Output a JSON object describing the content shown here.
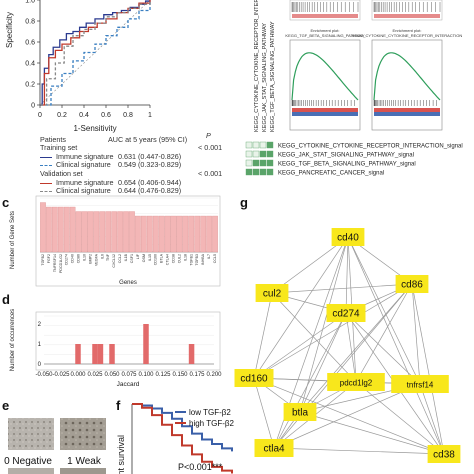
{
  "panel_labels": {
    "c": "c",
    "d": "d",
    "e": "e",
    "f": "f",
    "g": "g"
  },
  "roc": {
    "chart_data": {
      "type": "line",
      "ylabel": "Specificity",
      "xlabel": "1-Sensitivity",
      "xticks": [
        "0",
        "0.2",
        "0.4",
        "0.6",
        "0.8",
        "1"
      ],
      "yticks": [
        "0",
        "0.2",
        "0.4",
        "0.6",
        "0.8",
        "1.0"
      ],
      "xlim": [
        0,
        1
      ],
      "ylim": [
        0,
        1
      ],
      "series": [
        {
          "color": "#2b3a8f",
          "dash": "",
          "x": [
            0,
            0.02,
            0.04,
            0.08,
            0.12,
            0.18,
            0.24,
            0.3,
            0.36,
            0.42,
            0.5,
            0.58,
            0.66,
            0.74,
            0.82,
            0.9,
            0.96,
            1
          ],
          "y": [
            0,
            0.2,
            0.35,
            0.48,
            0.55,
            0.62,
            0.68,
            0.7,
            0.74,
            0.78,
            0.82,
            0.86,
            0.88,
            0.9,
            0.93,
            0.96,
            0.99,
            1
          ]
        },
        {
          "color": "#c0392b",
          "dash": "",
          "x": [
            0,
            0.04,
            0.08,
            0.14,
            0.2,
            0.28,
            0.36,
            0.44,
            0.52,
            0.6,
            0.7,
            0.8,
            0.9,
            1
          ],
          "y": [
            0,
            0.3,
            0.45,
            0.52,
            0.58,
            0.64,
            0.7,
            0.74,
            0.78,
            0.82,
            0.88,
            0.92,
            0.97,
            1
          ]
        },
        {
          "color": "#3a7fc1",
          "dash": "3,2",
          "x": [
            0,
            0.1,
            0.2,
            0.3,
            0.4,
            0.5,
            0.6,
            0.7,
            0.8,
            0.9,
            1
          ],
          "y": [
            0,
            0.18,
            0.3,
            0.42,
            0.5,
            0.58,
            0.66,
            0.74,
            0.82,
            0.9,
            1
          ]
        },
        {
          "color": "#888888",
          "dash": "3,2",
          "x": [
            0,
            0.06,
            0.14,
            0.22,
            0.3,
            0.4,
            0.5,
            0.6,
            0.7,
            0.8,
            0.9,
            1
          ],
          "y": [
            0,
            0.25,
            0.4,
            0.56,
            0.66,
            0.72,
            0.78,
            0.84,
            0.88,
            0.92,
            0.96,
            1
          ]
        }
      ]
    }
  },
  "auc_table": {
    "col_patients": "Patients",
    "col_auc": "AUC at 5 years (95% CI)",
    "col_p": "P",
    "training": "Training set",
    "validation": "Validation set",
    "training_p": "< 0.001",
    "validation_p": "< 0.001",
    "rows_training": [
      {
        "name": "Immune signature",
        "auc": "0.631 (0.447-0.826)"
      },
      {
        "name": "Clinical signature",
        "auc": "0.549 (0.323-0.829)"
      }
    ],
    "rows_validation": [
      {
        "name": "Immune signature",
        "auc": "0.654 (0.406-0.944)"
      },
      {
        "name": "Clinical signature",
        "auc": "0.644 (0.476-0.829)"
      }
    ]
  },
  "gsea": {
    "labels": [
      "KEGG_CYTOKINE_CYTOKINE_RECEPTOR_INTERACTION",
      "KEGG_JAK_STAT_SIGNALING_PATHWAY",
      "KEGG_TGF_BETA_SIGNALING_PATHWAY"
    ],
    "plots": [
      {
        "title": "Enrichment plot:\nKEGG_TGF_BETA_SIGNALING_PATHWAY"
      },
      {
        "title": "Enrichment plot:\nKEGG_CYTOKINE_CYTOKINE_RECEPTOR_INTERACTION"
      }
    ],
    "legend_items": [
      "KEGG_CYTOKINE_CYTOKINE_RECEPTOR_INTERACTION_signal",
      "KEGG_JAK_STAT_SIGNALING_PATHWAY_signal",
      "KEGG_TGF_BETA_SIGNALING_PATHWAY_signal",
      "KEGG_PANCREATIC_CANCER_signal"
    ],
    "colors": {
      "curve": "#2e9e5b",
      "box": "#5aa469"
    }
  },
  "gene_sets": {
    "chart_data": {
      "type": "bar",
      "ylabel": "Number of Gene Sets",
      "xlabel": "Genes",
      "ylim": [
        0,
        12
      ],
      "categories": [
        "TGFB2",
        "FGF2",
        "TNFRSF14",
        "PDCD1LG2",
        "CD274",
        "CD40",
        "CD86",
        "IL10",
        "BMP2",
        "VEGFA",
        "IL6",
        "TNF",
        "CXCL12",
        "CCL2",
        "IL1B",
        "CSF1",
        "LIF",
        "OSM",
        "IL15",
        "CD160",
        "BTLA",
        "CTLA4",
        "CD38",
        "CUL2",
        "IL18",
        "TGFB1",
        "TGFB3",
        "INHBA",
        "IL7",
        "CCL5"
      ],
      "values": [
        11,
        10,
        10,
        10,
        10,
        10,
        9,
        9,
        9,
        9,
        9,
        9,
        9,
        9,
        9,
        9,
        8,
        8,
        8,
        8,
        8,
        8,
        8,
        8,
        8,
        8,
        8,
        8,
        8,
        8
      ]
    },
    "colors": {
      "bar": "#f3b6b6",
      "edge": "#d98c8c"
    }
  },
  "jaccard": {
    "chart_data": {
      "type": "bar",
      "ylabel": "Number of occurrences",
      "xlabel": "Jaccard",
      "xlim": [
        -0.05,
        0.2
      ],
      "ylim": [
        0,
        2.4
      ],
      "xticks": [
        "-0.050",
        "-0.025",
        "0.000",
        "0.025",
        "0.050",
        "0.075",
        "0.100",
        "0.125",
        "0.150",
        "0.175",
        "0.200"
      ],
      "yticks": [
        "0",
        "1",
        "2"
      ],
      "x": [
        0.0,
        0.025,
        0.033,
        0.05,
        0.1,
        0.167
      ],
      "values": [
        1,
        1,
        1,
        1,
        2,
        1
      ]
    },
    "colors": {
      "bar": "#e26a6a"
    }
  },
  "ihc": {
    "labels": [
      "0 Negative",
      "1 Weak"
    ]
  },
  "km": {
    "ylabel": "sent survival",
    "legend": [
      "low TGF-β2",
      "high TGF-β2"
    ],
    "pvalue": "P<0.001***",
    "chart_data": {
      "type": "line",
      "series": [
        {
          "name": "low TGF-β2",
          "color": "#3a5fa8",
          "x": [
            0,
            1,
            2,
            3,
            4,
            5,
            6,
            7,
            8,
            9,
            10
          ],
          "y": [
            1,
            0.98,
            0.94,
            0.88,
            0.8,
            0.7,
            0.6,
            0.52,
            0.46,
            0.4,
            0.36
          ]
        },
        {
          "name": "high TGF-β2",
          "color": "#c0392b",
          "x": [
            0,
            1,
            2,
            3,
            4,
            5,
            6,
            7,
            8,
            9,
            10
          ],
          "y": [
            1,
            0.95,
            0.85,
            0.72,
            0.58,
            0.44,
            0.32,
            0.22,
            0.15,
            0.1,
            0.06
          ]
        }
      ]
    }
  },
  "network": {
    "node_color": "#f8e71c",
    "edge_color": "#9a9a9a",
    "nodes": [
      {
        "id": "cd40",
        "label": "cd40"
      },
      {
        "id": "cul2",
        "label": "cul2"
      },
      {
        "id": "cd86",
        "label": "cd86"
      },
      {
        "id": "cd274",
        "label": "cd274"
      },
      {
        "id": "cd160",
        "label": "cd160"
      },
      {
        "id": "pdcd1lg2",
        "label": "pdcd1lg2"
      },
      {
        "id": "tnfrsf14",
        "label": "tnfrsf14"
      },
      {
        "id": "btla",
        "label": "btla"
      },
      {
        "id": "ctla4",
        "label": "ctla4"
      },
      {
        "id": "cd38",
        "label": "cd38"
      }
    ],
    "edges": [
      [
        "cd40",
        "cd86"
      ],
      [
        "cd40",
        "cd274"
      ],
      [
        "cd40",
        "cul2"
      ],
      [
        "cd40",
        "cd160"
      ],
      [
        "cd40",
        "pdcd1lg2"
      ],
      [
        "cd40",
        "tnfrsf14"
      ],
      [
        "cd40",
        "btla"
      ],
      [
        "cd40",
        "ctla4"
      ],
      [
        "cd40",
        "cd38"
      ],
      [
        "cul2",
        "cd274"
      ],
      [
        "cul2",
        "cd86"
      ],
      [
        "cul2",
        "cd160"
      ],
      [
        "cul2",
        "pdcd1lg2"
      ],
      [
        "cd86",
        "cd274"
      ],
      [
        "cd86",
        "tnfrsf14"
      ],
      [
        "cd86",
        "pdcd1lg2"
      ],
      [
        "cd86",
        "btla"
      ],
      [
        "cd86",
        "ctla4"
      ],
      [
        "cd86",
        "cd38"
      ],
      [
        "cd86",
        "cd160"
      ],
      [
        "cd274",
        "pdcd1lg2"
      ],
      [
        "cd274",
        "cd160"
      ],
      [
        "cd274",
        "btla"
      ],
      [
        "cd274",
        "ctla4"
      ],
      [
        "cd274",
        "tnfrsf14"
      ],
      [
        "cd274",
        "cd38"
      ],
      [
        "cd160",
        "pdcd1lg2"
      ],
      [
        "cd160",
        "btla"
      ],
      [
        "cd160",
        "ctla4"
      ],
      [
        "cd160",
        "tnfrsf14"
      ],
      [
        "cd160",
        "cd38"
      ],
      [
        "pdcd1lg2",
        "tnfrsf14"
      ],
      [
        "pdcd1lg2",
        "btla"
      ],
      [
        "pdcd1lg2",
        "ctla4"
      ],
      [
        "pdcd1lg2",
        "cd38"
      ],
      [
        "tnfrsf14",
        "btla"
      ],
      [
        "tnfrsf14",
        "ctla4"
      ],
      [
        "tnfrsf14",
        "cd38"
      ],
      [
        "btla",
        "ctla4"
      ],
      [
        "btla",
        "cd38"
      ],
      [
        "ctla4",
        "cd38"
      ]
    ]
  }
}
